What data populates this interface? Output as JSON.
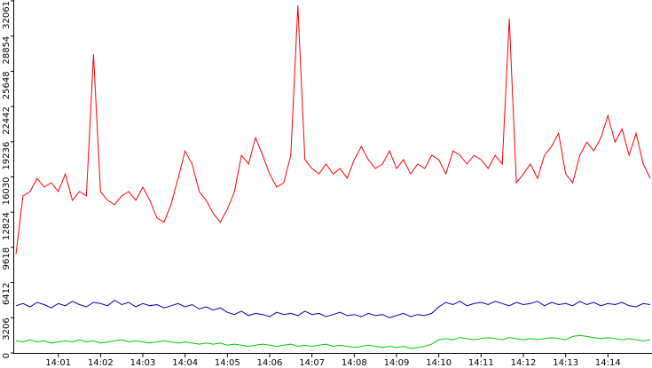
{
  "chart_data": {
    "type": "line",
    "categories": [
      null,
      null,
      null,
      null,
      null,
      null,
      "14:01",
      null,
      null,
      null,
      null,
      null,
      "14:02",
      null,
      null,
      null,
      null,
      null,
      "14:03",
      null,
      null,
      null,
      null,
      null,
      "14:04",
      null,
      null,
      null,
      null,
      null,
      "14:05",
      null,
      null,
      null,
      null,
      null,
      "14:06",
      null,
      null,
      null,
      null,
      null,
      "14:07",
      null,
      null,
      null,
      null,
      null,
      "14:08",
      null,
      null,
      null,
      null,
      null,
      "14:09",
      null,
      null,
      null,
      null,
      null,
      "14:10",
      null,
      null,
      null,
      null,
      null,
      "14:11",
      null,
      null,
      null,
      null,
      null,
      "14:12",
      null,
      null,
      null,
      null,
      null,
      "14:13",
      null,
      null,
      null,
      null,
      null,
      "14:14",
      null,
      null,
      null,
      null,
      null,
      null
    ],
    "series": [
      {
        "color": "#ff0000",
        "values": [
          9000,
          14300,
          14700,
          15900,
          15100,
          15500,
          14700,
          16300,
          13900,
          14700,
          14300,
          27200,
          14700,
          13900,
          13500,
          14300,
          14700,
          13900,
          15100,
          13900,
          12300,
          11900,
          13500,
          15900,
          18400,
          17200,
          14700,
          13900,
          12700,
          11900,
          13100,
          14700,
          18000,
          17200,
          19600,
          18000,
          16300,
          15100,
          15500,
          18000,
          31660,
          17600,
          16800,
          16300,
          17200,
          16300,
          16800,
          15900,
          17600,
          18800,
          17600,
          16800,
          17200,
          18400,
          16800,
          17600,
          16300,
          17200,
          16800,
          18000,
          17600,
          16300,
          18400,
          18000,
          17200,
          18000,
          17600,
          16800,
          18000,
          17200,
          30450,
          15500,
          16300,
          17200,
          15900,
          18000,
          18800,
          20000,
          16300,
          15500,
          18000,
          19200,
          18400,
          19600,
          21600,
          19200,
          20400,
          18000,
          20000,
          17200,
          15900
        ]
      },
      {
        "color": "#0000b0",
        "values": [
          4300,
          4500,
          4200,
          4600,
          4400,
          4100,
          4500,
          4300,
          4700,
          4400,
          4200,
          4600,
          4500,
          4300,
          4800,
          4400,
          4600,
          4200,
          4500,
          4300,
          4400,
          4100,
          4300,
          4500,
          4200,
          4400,
          4000,
          4200,
          3900,
          4100,
          3700,
          3500,
          3800,
          3400,
          3600,
          3500,
          3300,
          3700,
          3500,
          3600,
          3400,
          3800,
          3500,
          3600,
          3300,
          3500,
          3700,
          3400,
          3500,
          3300,
          3600,
          3400,
          3500,
          3200,
          3400,
          3600,
          3300,
          3500,
          3400,
          3600,
          4200,
          4600,
          4400,
          4700,
          4300,
          4500,
          4600,
          4400,
          4700,
          4500,
          4300,
          4600,
          4400,
          4500,
          4700,
          4300,
          4600,
          4400,
          4500,
          4300,
          4700,
          4400,
          4600,
          4300,
          4500,
          4400,
          4600,
          4300,
          4200,
          4500,
          4400
        ]
      },
      {
        "color": "#00cc00",
        "values": [
          1100,
          1000,
          1200,
          1000,
          1100,
          900,
          1000,
          1100,
          1000,
          1200,
          1000,
          1100,
          900,
          1000,
          1100,
          1200,
          1000,
          1100,
          1000,
          900,
          1000,
          1100,
          1000,
          900,
          1000,
          900,
          800,
          900,
          800,
          900,
          700,
          800,
          700,
          600,
          700,
          800,
          700,
          600,
          700,
          800,
          600,
          700,
          600,
          700,
          800,
          600,
          700,
          600,
          500,
          600,
          700,
          600,
          500,
          600,
          500,
          600,
          400,
          500,
          600,
          800,
          1200,
          1300,
          1200,
          1400,
          1300,
          1200,
          1300,
          1400,
          1300,
          1200,
          1400,
          1300,
          1200,
          1300,
          1200,
          1300,
          1400,
          1300,
          1200,
          1500,
          1600,
          1500,
          1400,
          1300,
          1400,
          1300,
          1200,
          1300,
          1200,
          1100,
          1200
        ]
      }
    ],
    "ylim": [
      0,
      32061
    ],
    "yticks": [
      0,
      3206,
      6412,
      9618,
      12824,
      16030,
      19236,
      22442,
      25648,
      28854,
      32061
    ]
  }
}
